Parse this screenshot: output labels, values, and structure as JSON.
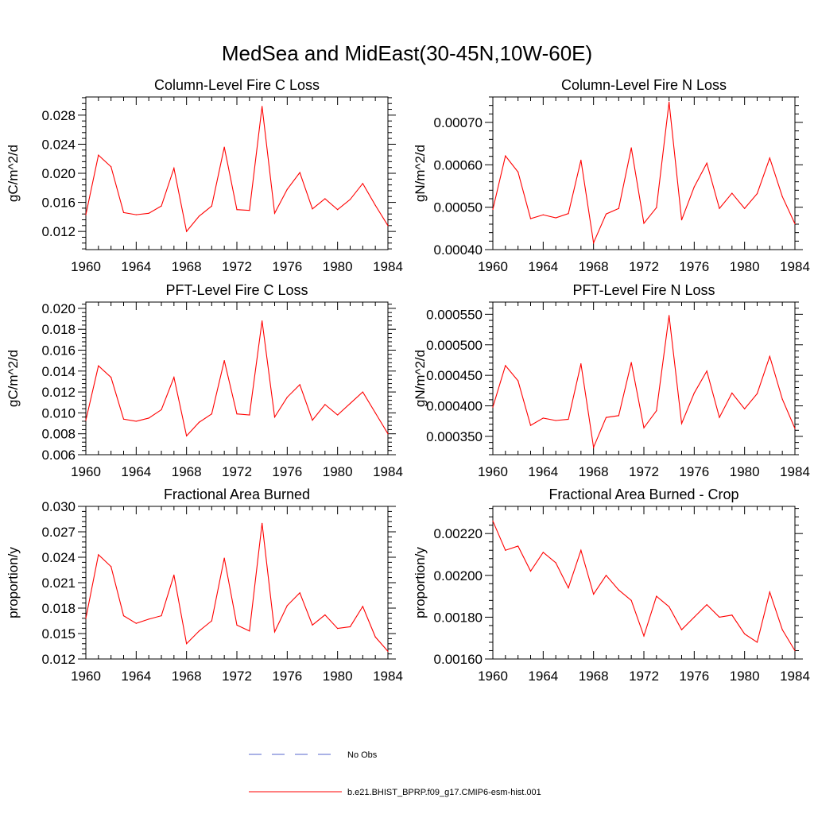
{
  "title": "MedSea and MidEast(30-45N,10W-60E)",
  "legend": {
    "items": [
      {
        "label": "No Obs",
        "color": "#5566cc",
        "style": "dashed"
      },
      {
        "label": "b.e21.BHIST_BPRP.f09_g17.CMIP6-esm-hist.001",
        "color": "#ff0000",
        "style": "solid"
      }
    ]
  },
  "chart_data": [
    {
      "type": "line",
      "title": "Column-Level Fire C Loss",
      "ylabel": "gC/m^2/d",
      "xlim": [
        1960,
        1984
      ],
      "ylim": [
        0.0095,
        0.0305
      ],
      "x_ticks": [
        "1960",
        "1964",
        "1968",
        "1972",
        "1976",
        "1980",
        "1984"
      ],
      "y_ticks": [
        "0.012",
        "0.016",
        "0.020",
        "0.024",
        "0.028"
      ],
      "y_tick_values": [
        0.012,
        0.016,
        0.02,
        0.024,
        0.028
      ],
      "series": [
        {
          "color": "#ff0000",
          "x": [
            1960,
            1961,
            1962,
            1963,
            1964,
            1965,
            1966,
            1967,
            1968,
            1969,
            1970,
            1971,
            1972,
            1973,
            1974,
            1975,
            1976,
            1977,
            1978,
            1979,
            1980,
            1981,
            1982,
            1983,
            1984
          ],
          "values": [
            0.0143,
            0.0225,
            0.0209,
            0.0146,
            0.0143,
            0.0145,
            0.0155,
            0.0207,
            0.012,
            0.0141,
            0.0155,
            0.0236,
            0.015,
            0.0149,
            0.0292,
            0.0145,
            0.0178,
            0.0201,
            0.0151,
            0.0165,
            0.015,
            0.0164,
            0.0186,
            0.0156,
            0.0128
          ]
        }
      ]
    },
    {
      "type": "line",
      "title": "Column-Level Fire N Loss",
      "ylabel": "gN/m^2/d",
      "xlim": [
        1960,
        1984
      ],
      "ylim": [
        0.0004,
        0.00076
      ],
      "x_ticks": [
        "1960",
        "1964",
        "1968",
        "1972",
        "1976",
        "1980",
        "1984"
      ],
      "y_ticks": [
        "0.00040",
        "0.00050",
        "0.00060",
        "0.00070"
      ],
      "y_tick_values": [
        0.0004,
        0.0005,
        0.0006,
        0.0007
      ],
      "series": [
        {
          "color": "#ff0000",
          "x": [
            1960,
            1961,
            1962,
            1963,
            1964,
            1965,
            1966,
            1967,
            1968,
            1969,
            1970,
            1971,
            1972,
            1973,
            1974,
            1975,
            1976,
            1977,
            1978,
            1979,
            1980,
            1981,
            1982,
            1983,
            1984
          ],
          "values": [
            0.000495,
            0.000621,
            0.000583,
            0.000473,
            0.000482,
            0.000475,
            0.000485,
            0.000611,
            0.000416,
            0.000484,
            0.000497,
            0.00064,
            0.000462,
            0.000499,
            0.000748,
            0.00047,
            0.000548,
            0.000604,
            0.000497,
            0.000533,
            0.000497,
            0.000532,
            0.000616,
            0.000525,
            0.000461
          ]
        }
      ]
    },
    {
      "type": "line",
      "title": "PFT-Level Fire C Loss",
      "ylabel": "gC/m^2/d",
      "xlim": [
        1960,
        1984
      ],
      "ylim": [
        0.006,
        0.0206
      ],
      "x_ticks": [
        "1960",
        "1964",
        "1968",
        "1972",
        "1976",
        "1980",
        "1984"
      ],
      "y_ticks": [
        "0.006",
        "0.008",
        "0.010",
        "0.012",
        "0.014",
        "0.016",
        "0.018",
        "0.020"
      ],
      "y_tick_values": [
        0.006,
        0.008,
        0.01,
        0.012,
        0.014,
        0.016,
        0.018,
        0.02
      ],
      "series": [
        {
          "color": "#ff0000",
          "x": [
            1960,
            1961,
            1962,
            1963,
            1964,
            1965,
            1966,
            1967,
            1968,
            1969,
            1970,
            1971,
            1972,
            1973,
            1974,
            1975,
            1976,
            1977,
            1978,
            1979,
            1980,
            1981,
            1982,
            1983,
            1984
          ],
          "values": [
            0.0093,
            0.0145,
            0.0134,
            0.0094,
            0.0092,
            0.0095,
            0.0103,
            0.0134,
            0.0078,
            0.0091,
            0.0099,
            0.015,
            0.0099,
            0.0098,
            0.0188,
            0.0096,
            0.0115,
            0.0127,
            0.0093,
            0.0108,
            0.0098,
            0.0109,
            0.012,
            0.01,
            0.008
          ]
        }
      ]
    },
    {
      "type": "line",
      "title": "PFT-Level Fire N Loss",
      "ylabel": "gN/m^2/d",
      "xlim": [
        1960,
        1984
      ],
      "ylim": [
        0.00032,
        0.00057
      ],
      "x_ticks": [
        "1960",
        "1964",
        "1968",
        "1972",
        "1976",
        "1980",
        "1984"
      ],
      "y_ticks": [
        "0.000350",
        "0.000400",
        "0.000450",
        "0.000500",
        "0.000550"
      ],
      "y_tick_values": [
        0.00035,
        0.0004,
        0.00045,
        0.0005,
        0.00055
      ],
      "series": [
        {
          "color": "#ff0000",
          "x": [
            1960,
            1961,
            1962,
            1963,
            1964,
            1965,
            1966,
            1967,
            1968,
            1969,
            1970,
            1971,
            1972,
            1973,
            1974,
            1975,
            1976,
            1977,
            1978,
            1979,
            1980,
            1981,
            1982,
            1983,
            1984
          ],
          "values": [
            0.000398,
            0.000466,
            0.000441,
            0.000368,
            0.00038,
            0.000376,
            0.000378,
            0.000469,
            0.000332,
            0.000381,
            0.000384,
            0.000471,
            0.000364,
            0.000392,
            0.000548,
            0.000371,
            0.000421,
            0.000457,
            0.000381,
            0.000421,
            0.000395,
            0.00042,
            0.000481,
            0.000411,
            0.000363
          ]
        }
      ]
    },
    {
      "type": "line",
      "title": "Fractional Area Burned",
      "ylabel": "proportion/y",
      "xlim": [
        1960,
        1984
      ],
      "ylim": [
        0.012,
        0.03
      ],
      "x_ticks": [
        "1960",
        "1964",
        "1968",
        "1972",
        "1976",
        "1980",
        "1984"
      ],
      "y_ticks": [
        "0.012",
        "0.015",
        "0.018",
        "0.021",
        "0.024",
        "0.027",
        "0.030"
      ],
      "y_tick_values": [
        0.012,
        0.015,
        0.018,
        0.021,
        0.024,
        0.027,
        0.03
      ],
      "series": [
        {
          "color": "#ff0000",
          "x": [
            1960,
            1961,
            1962,
            1963,
            1964,
            1965,
            1966,
            1967,
            1968,
            1969,
            1970,
            1971,
            1972,
            1973,
            1974,
            1975,
            1976,
            1977,
            1978,
            1979,
            1980,
            1981,
            1982,
            1983,
            1984
          ],
          "values": [
            0.0168,
            0.0243,
            0.0229,
            0.0171,
            0.0162,
            0.0167,
            0.0171,
            0.0219,
            0.0138,
            0.0153,
            0.0165,
            0.0239,
            0.016,
            0.0153,
            0.028,
            0.0152,
            0.0183,
            0.0198,
            0.016,
            0.0172,
            0.0156,
            0.0158,
            0.0182,
            0.0146,
            0.0129
          ]
        }
      ]
    },
    {
      "type": "line",
      "title": "Fractional Area Burned - Crop",
      "ylabel": "proportion/y",
      "xlim": [
        1960,
        1984
      ],
      "ylim": [
        0.0016,
        0.00233
      ],
      "x_ticks": [
        "1960",
        "1964",
        "1968",
        "1972",
        "1976",
        "1980",
        "1984"
      ],
      "y_ticks": [
        "0.00160",
        "0.00180",
        "0.00200",
        "0.00220"
      ],
      "y_tick_values": [
        0.0016,
        0.0018,
        0.002,
        0.0022
      ],
      "series": [
        {
          "color": "#ff0000",
          "x": [
            1960,
            1961,
            1962,
            1963,
            1964,
            1965,
            1966,
            1967,
            1968,
            1969,
            1970,
            1971,
            1972,
            1973,
            1974,
            1975,
            1976,
            1977,
            1978,
            1979,
            1980,
            1981,
            1982,
            1983,
            1984
          ],
          "values": [
            0.00226,
            0.00212,
            0.00214,
            0.00202,
            0.00211,
            0.00206,
            0.00194,
            0.00212,
            0.00191,
            0.002,
            0.00193,
            0.00188,
            0.00171,
            0.0019,
            0.00185,
            0.00174,
            0.0018,
            0.00186,
            0.0018,
            0.00181,
            0.00172,
            0.00168,
            0.00192,
            0.00174,
            0.00164
          ]
        }
      ]
    }
  ]
}
